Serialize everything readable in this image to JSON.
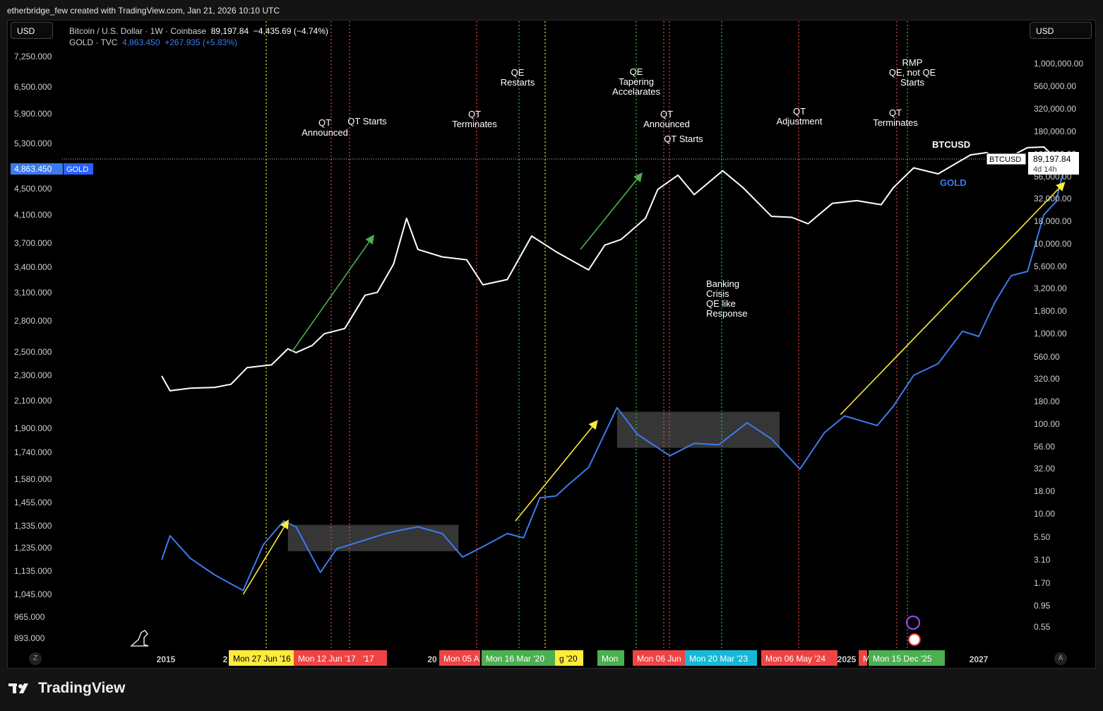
{
  "header": {
    "credit": "etherbridge_few created with TradingView.com, Jan 21, 2026 10:10 UTC"
  },
  "controls": {
    "currency_left": "USD",
    "currency_right": "USD",
    "corner_left": "Z",
    "corner_right": "A"
  },
  "legend": {
    "btc_name": "Bitcoin / U.S. Dollar · 1W · Coinbase",
    "btc_value": "89,197.84",
    "btc_change": "−4,435.69 (−4.74%)",
    "gold_name": "GOLD · TVC",
    "gold_value": "4,863.450",
    "gold_change": "+267.935 (+5.83%)"
  },
  "brand": {
    "name": "TradingView"
  },
  "colors": {
    "background": "#000000",
    "btc_line": "#ffffff",
    "gold_line": "#3b7bef",
    "qt_red": "#ef4444",
    "qe_green": "#4caf50",
    "yellow": "#ffeb3b",
    "cyan": "#17b8d6",
    "green_arrow": "#4caf50"
  },
  "chart_data": {
    "type": "line",
    "x_axis": {
      "ticks": [
        "2015",
        "2016",
        "2020",
        "2025",
        "2027"
      ],
      "visible_tick_labels": [
        "2015",
        "2",
        "20",
        "2025",
        "2027"
      ]
    },
    "left_axis": {
      "series": "GOLD",
      "ticks": [
        "7,250.000",
        "6,500.000",
        "5,900.000",
        "5,300.000",
        "4,500.000",
        "4,100.000",
        "3,700.000",
        "3,400.000",
        "3,100.000",
        "2,800.000",
        "2,500.000",
        "2,300.000",
        "2,100.000",
        "1,900.000",
        "1,740.000",
        "1,580.000",
        "1,455.000",
        "1,335.000",
        "1,235.000",
        "1,135.000",
        "1,045.000",
        "965.000",
        "893.000"
      ],
      "current_label": "4,863.450",
      "current_tag": "GOLD"
    },
    "right_axis": {
      "series": "BTCUSD",
      "scale": "log",
      "ticks": [
        "1,000,000.00",
        "560,000.00",
        "320,000.00",
        "180,000.00",
        "100,000.00",
        "56,000.00",
        "32,000.00",
        "18,000.00",
        "10,000.00",
        "5,600.00",
        "3,200.00",
        "1,800.00",
        "1,000.00",
        "560.00",
        "320.00",
        "180.00",
        "100.00",
        "56.00",
        "32.00",
        "18.00",
        "10.00",
        "5.50",
        "3.10",
        "1.70",
        "0.95",
        "0.55"
      ],
      "current_tag": "BTCUSD",
      "current_value": "89,197.84",
      "countdown": "4d 14h"
    },
    "series": [
      {
        "name": "BTCUSD",
        "color": "#ffffff",
        "points": [
          [
            2014.95,
            320
          ],
          [
            2015.05,
            220
          ],
          [
            2015.3,
            235
          ],
          [
            2015.6,
            240
          ],
          [
            2015.8,
            260
          ],
          [
            2016.0,
            400
          ],
          [
            2016.3,
            430
          ],
          [
            2016.5,
            650
          ],
          [
            2016.6,
            590
          ],
          [
            2016.8,
            710
          ],
          [
            2016.95,
            960
          ],
          [
            2017.2,
            1100
          ],
          [
            2017.45,
            2600
          ],
          [
            2017.6,
            2800
          ],
          [
            2017.8,
            5800
          ],
          [
            2017.96,
            19000
          ],
          [
            2018.1,
            8500
          ],
          [
            2018.4,
            7000
          ],
          [
            2018.7,
            6500
          ],
          [
            2018.9,
            3400
          ],
          [
            2019.2,
            3900
          ],
          [
            2019.5,
            12000
          ],
          [
            2019.8,
            8000
          ],
          [
            2020.2,
            5000
          ],
          [
            2020.4,
            9500
          ],
          [
            2020.6,
            11000
          ],
          [
            2020.9,
            19000
          ],
          [
            2021.05,
            40000
          ],
          [
            2021.3,
            58000
          ],
          [
            2021.5,
            35000
          ],
          [
            2021.85,
            65000
          ],
          [
            2022.1,
            42000
          ],
          [
            2022.45,
            20000
          ],
          [
            2022.7,
            19500
          ],
          [
            2022.9,
            16500
          ],
          [
            2023.2,
            28000
          ],
          [
            2023.5,
            30000
          ],
          [
            2023.8,
            27000
          ],
          [
            2023.95,
            42000
          ],
          [
            2024.2,
            70000
          ],
          [
            2024.5,
            60000
          ],
          [
            2024.9,
            98000
          ],
          [
            2025.1,
            104000
          ],
          [
            2025.3,
            85000
          ],
          [
            2025.6,
            118000
          ],
          [
            2025.8,
            120000
          ],
          [
            2025.95,
            90000
          ],
          [
            2026.05,
            89197.84
          ]
        ]
      },
      {
        "name": "GOLD",
        "color": "#3b7bef",
        "points": [
          [
            2014.95,
            1185
          ],
          [
            2015.05,
            1290
          ],
          [
            2015.3,
            1190
          ],
          [
            2015.6,
            1120
          ],
          [
            2015.95,
            1060
          ],
          [
            2016.2,
            1250
          ],
          [
            2016.45,
            1360
          ],
          [
            2016.6,
            1330
          ],
          [
            2016.9,
            1130
          ],
          [
            2017.1,
            1230
          ],
          [
            2017.45,
            1270
          ],
          [
            2017.7,
            1300
          ],
          [
            2017.95,
            1320
          ],
          [
            2018.1,
            1330
          ],
          [
            2018.4,
            1300
          ],
          [
            2018.65,
            1195
          ],
          [
            2018.9,
            1240
          ],
          [
            2019.2,
            1300
          ],
          [
            2019.4,
            1280
          ],
          [
            2019.6,
            1480
          ],
          [
            2019.8,
            1490
          ],
          [
            2019.95,
            1550
          ],
          [
            2020.2,
            1650
          ],
          [
            2020.55,
            2050
          ],
          [
            2020.8,
            1860
          ],
          [
            2021.2,
            1720
          ],
          [
            2021.5,
            1800
          ],
          [
            2021.8,
            1790
          ],
          [
            2022.15,
            1940
          ],
          [
            2022.45,
            1830
          ],
          [
            2022.8,
            1640
          ],
          [
            2023.1,
            1870
          ],
          [
            2023.35,
            1990
          ],
          [
            2023.75,
            1920
          ],
          [
            2023.95,
            2060
          ],
          [
            2024.2,
            2300
          ],
          [
            2024.5,
            2400
          ],
          [
            2024.8,
            2700
          ],
          [
            2025.0,
            2650
          ],
          [
            2025.2,
            3000
          ],
          [
            2025.4,
            3300
          ],
          [
            2025.6,
            3350
          ],
          [
            2025.8,
            4100
          ],
          [
            2025.95,
            4300
          ],
          [
            2026.05,
            4863.45
          ]
        ]
      }
    ],
    "series_labels": [
      {
        "name": "BTCUSD",
        "text": "BTCUSD"
      },
      {
        "name": "GOLD",
        "text": "GOLD"
      }
    ],
    "event_lines": [
      {
        "date": "Mon 27 Jun '16",
        "color": "yellow"
      },
      {
        "date": "Mon 12 Jun '17",
        "color": "red"
      },
      {
        "date": "'17",
        "color": "red"
      },
      {
        "date": "Mon 05 A",
        "color": "red"
      },
      {
        "date": "Mon 16 Mar '20",
        "color": "green"
      },
      {
        "date": "g '20",
        "color": "yellow"
      },
      {
        "date": "Mon",
        "color": "green"
      },
      {
        "date": "Mon 06 Jun",
        "color": "red"
      },
      {
        "date": "",
        "color": "red"
      },
      {
        "date": "Mon 20 Mar '23",
        "color": "cyan"
      },
      {
        "date": "Mon 06 May '24",
        "color": "red"
      },
      {
        "date": "M",
        "color": "red"
      },
      {
        "date": "Mon 15 Dec '25",
        "color": "green"
      }
    ],
    "annotations": [
      {
        "lines": [
          "QT",
          "Announced"
        ]
      },
      {
        "lines": [
          "QT Starts"
        ]
      },
      {
        "lines": [
          "QT",
          "Terminates"
        ]
      },
      {
        "lines": [
          "QE",
          "Restarts"
        ]
      },
      {
        "lines": [
          "QE",
          "Tapering",
          "Accelarates"
        ]
      },
      {
        "lines": [
          "QT",
          "Announced"
        ]
      },
      {
        "lines": [
          "QT Starts"
        ]
      },
      {
        "lines": [
          "Banking",
          "Crisis",
          "QE like",
          "Response"
        ]
      },
      {
        "lines": [
          "QT",
          "Adjustment"
        ]
      },
      {
        "lines": [
          "QT",
          "Terminates"
        ]
      },
      {
        "lines": [
          "RMP",
          "QE, not QE",
          "Starts"
        ]
      }
    ],
    "consolidation_boxes": [
      {
        "series": "GOLD",
        "from": 2016.5,
        "to": 2018.6,
        "low": 1220,
        "high": 1340
      },
      {
        "series": "GOLD",
        "from": 2020.55,
        "to": 2022.55,
        "low": 1770,
        "high": 2020
      }
    ],
    "trend_arrows": [
      {
        "series": "GOLD",
        "color": "yellow",
        "from": [
          2015.95,
          1045
        ],
        "to": [
          2016.5,
          1360
        ]
      },
      {
        "series": "BTCUSD",
        "color": "green",
        "from": [
          2016.55,
          600
        ],
        "to": [
          2017.55,
          12000
        ]
      },
      {
        "series": "GOLD",
        "color": "yellow",
        "from": [
          2019.3,
          1360
        ],
        "to": [
          2020.3,
          1950
        ]
      },
      {
        "series": "BTCUSD",
        "color": "green",
        "from": [
          2020.1,
          8500
        ],
        "to": [
          2020.85,
          60000
        ]
      },
      {
        "series": "GOLD",
        "color": "yellow",
        "from": [
          2023.3,
          2000
        ],
        "to": [
          2026.05,
          4600
        ]
      }
    ]
  }
}
